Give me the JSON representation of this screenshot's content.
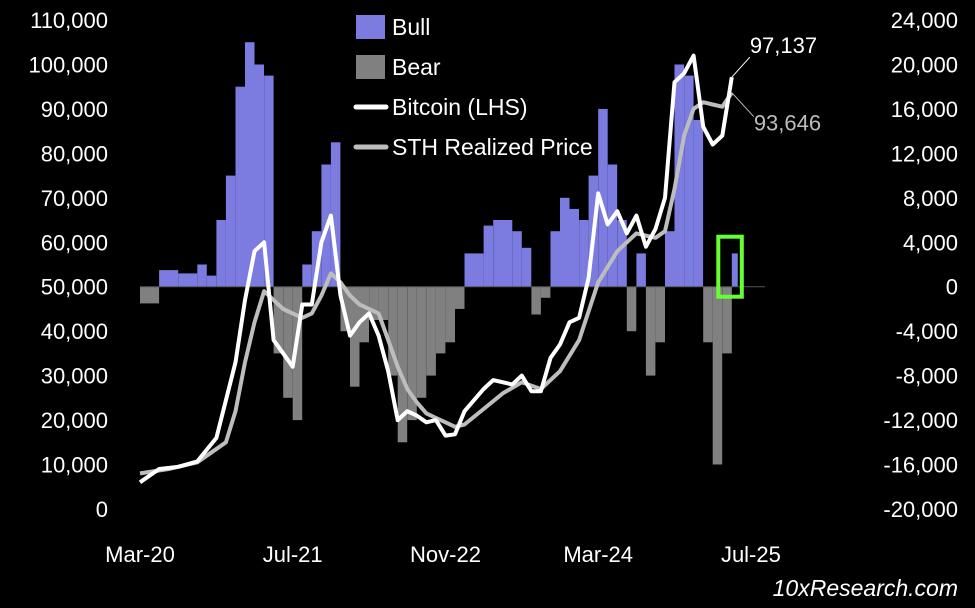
{
  "chart_data": {
    "type": "bar+line",
    "title": "",
    "legend": [
      {
        "name": "Bull",
        "kind": "bar",
        "color": "#7b7be0"
      },
      {
        "name": "Bear",
        "kind": "bar",
        "color": "#808080"
      },
      {
        "name": "Bitcoin (LHS)",
        "kind": "line",
        "color": "#ffffff"
      },
      {
        "name": "STH Realized Price",
        "kind": "line",
        "color": "#bdbdbd"
      }
    ],
    "legend_placement": "top-center",
    "x_range": [
      "2020-03",
      "2025-09"
    ],
    "x_ticks": [
      {
        "date": "2020-03",
        "label": "Mar-20"
      },
      {
        "date": "2021-07",
        "label": "Jul-21"
      },
      {
        "date": "2022-11",
        "label": "Nov-22"
      },
      {
        "date": "2024-03",
        "label": "Mar-24"
      },
      {
        "date": "2025-07",
        "label": "Jul-25"
      }
    ],
    "y_left": {
      "min": 0,
      "max": 110000,
      "ticks": [
        0,
        10000,
        20000,
        30000,
        40000,
        50000,
        60000,
        70000,
        80000,
        90000,
        100000,
        110000
      ],
      "tick_labels": [
        "0",
        "10,000",
        "20,000",
        "30,000",
        "40,000",
        "50,000",
        "60,000",
        "70,000",
        "80,000",
        "90,000",
        "100,000",
        "110,000"
      ]
    },
    "y_right": {
      "min": -20000,
      "max": 24000,
      "ticks": [
        -20000,
        -16000,
        -12000,
        -8000,
        -4000,
        0,
        4000,
        8000,
        12000,
        16000,
        20000,
        24000
      ],
      "tick_labels": [
        "-20,000",
        "-16,000",
        "-12,000",
        "-8,000",
        "-4,000",
        "0",
        "4,000",
        "8,000",
        "12,000",
        "16,000",
        "20,000",
        "24,000"
      ]
    },
    "grid": false,
    "bitcoin_lhs": [
      [
        "2020-03",
        6000
      ],
      [
        "2020-05",
        9000
      ],
      [
        "2020-07",
        9500
      ],
      [
        "2020-09",
        10700
      ],
      [
        "2020-11",
        16000
      ],
      [
        "2021-01",
        33000
      ],
      [
        "2021-02",
        47000
      ],
      [
        "2021-03",
        58000
      ],
      [
        "2021-04",
        60000
      ],
      [
        "2021-05",
        38000
      ],
      [
        "2021-06",
        35000
      ],
      [
        "2021-07",
        32000
      ],
      [
        "2021-08",
        46000
      ],
      [
        "2021-09",
        46000
      ],
      [
        "2021-10",
        60000
      ],
      [
        "2021-11",
        66000
      ],
      [
        "2021-12",
        48000
      ],
      [
        "2022-01",
        39000
      ],
      [
        "2022-02",
        42000
      ],
      [
        "2022-03",
        44000
      ],
      [
        "2022-04",
        39000
      ],
      [
        "2022-05",
        31000
      ],
      [
        "2022-06",
        20000
      ],
      [
        "2022-07",
        22000
      ],
      [
        "2022-08",
        21000
      ],
      [
        "2022-09",
        19500
      ],
      [
        "2022-10",
        20000
      ],
      [
        "2022-11",
        16500
      ],
      [
        "2022-12",
        16800
      ],
      [
        "2023-01",
        22000
      ],
      [
        "2023-03",
        27000
      ],
      [
        "2023-04",
        29000
      ],
      [
        "2023-06",
        28000
      ],
      [
        "2023-07",
        30000
      ],
      [
        "2023-08",
        26500
      ],
      [
        "2023-09",
        26500
      ],
      [
        "2023-10",
        34000
      ],
      [
        "2023-11",
        37000
      ],
      [
        "2023-12",
        42000
      ],
      [
        "2024-01",
        43000
      ],
      [
        "2024-02",
        52000
      ],
      [
        "2024-03",
        71000
      ],
      [
        "2024-04",
        64000
      ],
      [
        "2024-05",
        67000
      ],
      [
        "2024-06",
        62000
      ],
      [
        "2024-07",
        66000
      ],
      [
        "2024-08",
        59000
      ],
      [
        "2024-09",
        63000
      ],
      [
        "2024-10",
        70000
      ],
      [
        "2024-11",
        96000
      ],
      [
        "2024-12",
        98000
      ],
      [
        "2025-01",
        102000
      ],
      [
        "2025-02",
        86000
      ],
      [
        "2025-03",
        82000
      ],
      [
        "2025-04",
        84000
      ],
      [
        "2025-05",
        97137
      ]
    ],
    "sth_realized_price": [
      [
        "2020-03",
        8000
      ],
      [
        "2020-06",
        9000
      ],
      [
        "2020-09",
        10500
      ],
      [
        "2020-12",
        15000
      ],
      [
        "2021-01",
        22000
      ],
      [
        "2021-02",
        33000
      ],
      [
        "2021-03",
        42000
      ],
      [
        "2021-04",
        49000
      ],
      [
        "2021-05",
        47000
      ],
      [
        "2021-06",
        45000
      ],
      [
        "2021-07",
        44000
      ],
      [
        "2021-08",
        43000
      ],
      [
        "2021-09",
        44000
      ],
      [
        "2021-10",
        48000
      ],
      [
        "2021-11",
        53000
      ],
      [
        "2021-12",
        51000
      ],
      [
        "2022-01",
        48000
      ],
      [
        "2022-02",
        46000
      ],
      [
        "2022-03",
        45000
      ],
      [
        "2022-04",
        44000
      ],
      [
        "2022-05",
        38000
      ],
      [
        "2022-06",
        32000
      ],
      [
        "2022-07",
        27000
      ],
      [
        "2022-08",
        24000
      ],
      [
        "2022-09",
        21500
      ],
      [
        "2022-10",
        20500
      ],
      [
        "2022-11",
        19500
      ],
      [
        "2022-12",
        18500
      ],
      [
        "2023-01",
        19000
      ],
      [
        "2023-03",
        22500
      ],
      [
        "2023-05",
        26000
      ],
      [
        "2023-07",
        28500
      ],
      [
        "2023-09",
        27000
      ],
      [
        "2023-11",
        31000
      ],
      [
        "2024-01",
        38000
      ],
      [
        "2024-03",
        51000
      ],
      [
        "2024-05",
        58000
      ],
      [
        "2024-07",
        62000
      ],
      [
        "2024-09",
        61000
      ],
      [
        "2024-10",
        62500
      ],
      [
        "2024-11",
        72000
      ],
      [
        "2024-12",
        84000
      ],
      [
        "2025-01",
        90000
      ],
      [
        "2025-02",
        91500
      ],
      [
        "2025-03",
        91000
      ],
      [
        "2025-04",
        90500
      ],
      [
        "2025-05",
        93646
      ]
    ],
    "bull_bear_rhs": [
      [
        "2020-03",
        -1500
      ],
      [
        "2020-05",
        1500
      ],
      [
        "2020-07",
        1200
      ],
      [
        "2020-09",
        2000
      ],
      [
        "2020-10",
        1000
      ],
      [
        "2020-11",
        6000
      ],
      [
        "2020-12",
        10000
      ],
      [
        "2021-01",
        18000
      ],
      [
        "2021-02",
        22000
      ],
      [
        "2021-03",
        20000
      ],
      [
        "2021-04",
        19000
      ],
      [
        "2021-05",
        -6000
      ],
      [
        "2021-06",
        -10000
      ],
      [
        "2021-07",
        -12000
      ],
      [
        "2021-08",
        2000
      ],
      [
        "2021-09",
        5000
      ],
      [
        "2021-10",
        11000
      ],
      [
        "2021-11",
        13000
      ],
      [
        "2021-12",
        -4000
      ],
      [
        "2022-01",
        -9000
      ],
      [
        "2022-02",
        -5000
      ],
      [
        "2022-03",
        -3000
      ],
      [
        "2022-04",
        -3000
      ],
      [
        "2022-05",
        -8000
      ],
      [
        "2022-06",
        -14000
      ],
      [
        "2022-07",
        -12000
      ],
      [
        "2022-08",
        -10000
      ],
      [
        "2022-09",
        -8000
      ],
      [
        "2022-10",
        -6000
      ],
      [
        "2022-11",
        -5000
      ],
      [
        "2022-12",
        -2000
      ],
      [
        "2023-01",
        3000
      ],
      [
        "2023-03",
        5500
      ],
      [
        "2023-04",
        6000
      ],
      [
        "2023-06",
        5000
      ],
      [
        "2023-07",
        3500
      ],
      [
        "2023-08",
        -2500
      ],
      [
        "2023-09",
        -1000
      ],
      [
        "2023-10",
        5000
      ],
      [
        "2023-11",
        8000
      ],
      [
        "2023-12",
        7000
      ],
      [
        "2024-01",
        6000
      ],
      [
        "2024-02",
        10000
      ],
      [
        "2024-03",
        16000
      ],
      [
        "2024-04",
        11000
      ],
      [
        "2024-05",
        6000
      ],
      [
        "2024-06",
        -4000
      ],
      [
        "2024-07",
        3000
      ],
      [
        "2024-08",
        -8000
      ],
      [
        "2024-09",
        -5000
      ],
      [
        "2024-10",
        5000
      ],
      [
        "2024-11",
        20000
      ],
      [
        "2024-12",
        19000
      ],
      [
        "2025-01",
        15000
      ],
      [
        "2025-02",
        -5000
      ],
      [
        "2025-03",
        -16000
      ],
      [
        "2025-04",
        -6000
      ],
      [
        "2025-05",
        3000
      ]
    ],
    "annotations": [
      {
        "text": "97,137",
        "series": "Bitcoin (LHS)",
        "color": "#ffffff"
      },
      {
        "text": "93,646",
        "series": "STH Realized Price",
        "color": "#bdbdbd"
      }
    ],
    "highlight_box": {
      "from": "2025-04",
      "to": "2025-05",
      "color": "#66ff33"
    },
    "watermark": "10xResearch.com"
  }
}
